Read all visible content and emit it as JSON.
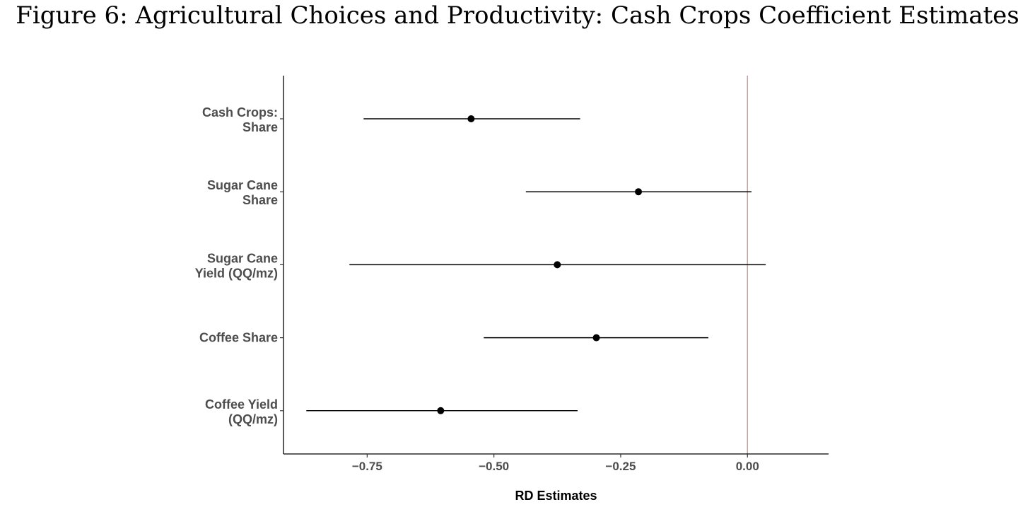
{
  "figure": {
    "title": "Figure 6: Agricultural Choices and Productivity: Cash Crops Coefficient Estimates"
  },
  "chart_data": {
    "type": "coefficient-plot",
    "title": "",
    "xlabel": "RD Estimates",
    "ylabel": "",
    "xlim": [
      -0.915,
      0.16
    ],
    "x_ticks": [
      -0.75,
      -0.5,
      -0.25,
      0.0
    ],
    "x_tick_labels": [
      "−0.75",
      "−0.50",
      "−0.25",
      "0.00"
    ],
    "reference_line": {
      "x": 0.0,
      "color": "#c9a39b"
    },
    "point_color": "#000000",
    "grid": false,
    "legend": "none",
    "categories": [
      [
        "Cash Crops:",
        "Share"
      ],
      [
        "Sugar Cane",
        "Share"
      ],
      [
        "Sugar Cane",
        "Yield (QQ/mz)"
      ],
      [
        "Coffee Share"
      ],
      [
        "Coffee Yield",
        "(QQ/mz)"
      ]
    ],
    "estimates": [
      -0.545,
      -0.215,
      -0.375,
      -0.298,
      -0.605
    ],
    "ci_low": [
      -0.757,
      -0.437,
      -0.785,
      -0.52,
      -0.87
    ],
    "ci_high": [
      -0.33,
      0.008,
      0.036,
      -0.077,
      -0.335
    ]
  }
}
